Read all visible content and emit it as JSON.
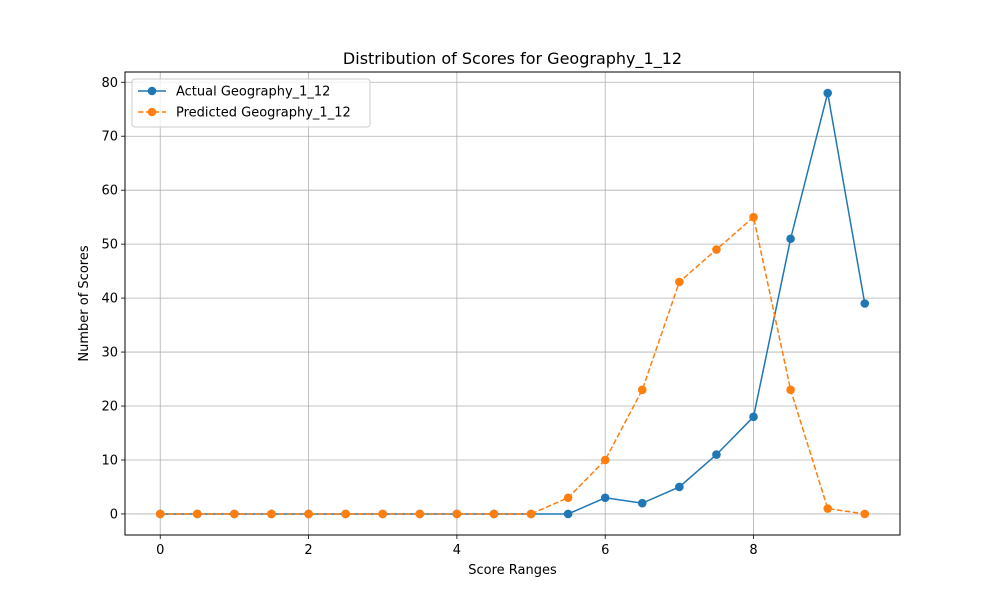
{
  "chart_data": {
    "type": "line",
    "title": "Distribution of Scores for Geography_1_12",
    "xlabel": "Score Ranges",
    "ylabel": "Number of Scores",
    "xlim": [
      -0.475,
      9.975
    ],
    "ylim": [
      -3.9,
      81.9
    ],
    "xticks": [
      0,
      2,
      4,
      6,
      8
    ],
    "yticks": [
      0,
      10,
      20,
      30,
      40,
      50,
      60,
      70,
      80
    ],
    "grid": true,
    "legend_position": "top-left",
    "x": [
      0,
      0.5,
      1,
      1.5,
      2,
      2.5,
      3,
      3.5,
      4,
      4.5,
      5,
      5.5,
      6,
      6.5,
      7,
      7.5,
      8,
      8.5,
      9,
      9.5
    ],
    "series": [
      {
        "name": "Actual Geography_1_12",
        "color": "#1f77b4",
        "line_style": "solid",
        "marker": "circle",
        "values": [
          0,
          0,
          0,
          0,
          0,
          0,
          0,
          0,
          0,
          0,
          0,
          0,
          3,
          2,
          5,
          11,
          18,
          51,
          78,
          39
        ]
      },
      {
        "name": "Predicted Geography_1_12",
        "color": "#ff7f0e",
        "line_style": "dashed",
        "marker": "circle",
        "values": [
          0,
          0,
          0,
          0,
          0,
          0,
          0,
          0,
          0,
          0,
          0,
          3,
          10,
          23,
          43,
          49,
          55,
          23,
          1,
          0
        ]
      }
    ]
  }
}
